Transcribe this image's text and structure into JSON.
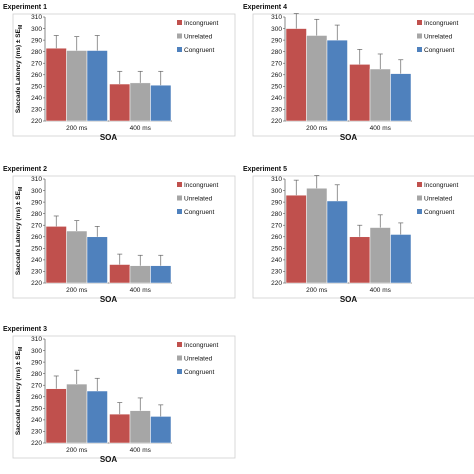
{
  "chart_data": [
    {
      "type": "bar",
      "title": "Experiment 1",
      "ylabel": "Saccade Latency (ms) ± SE",
      "ylabel_sub": "M",
      "xlabel": "SOA",
      "categories": [
        "200 ms",
        "400 ms"
      ],
      "ylim": [
        220,
        310
      ],
      "yticks": [
        220,
        230,
        240,
        250,
        260,
        270,
        280,
        290,
        300,
        310
      ],
      "legend_position": "top-right",
      "series": [
        {
          "name": "Incongruent",
          "color": "#c0504d",
          "values": [
            283,
            252
          ],
          "errors": [
            11,
            11
          ]
        },
        {
          "name": "Unrelated",
          "color": "#a6a6a6",
          "values": [
            281,
            253
          ],
          "errors": [
            12,
            10
          ]
        },
        {
          "name": "Congruent",
          "color": "#4f81bd",
          "values": [
            281,
            251
          ],
          "errors": [
            13,
            12
          ]
        }
      ]
    },
    {
      "type": "bar",
      "title": "Experiment 4",
      "ylabel": "",
      "xlabel": "SOA",
      "categories": [
        "200 ms",
        "400 ms"
      ],
      "ylim": [
        220,
        310
      ],
      "yticks": [
        220,
        230,
        240,
        250,
        260,
        270,
        280,
        290,
        300,
        310
      ],
      "legend_position": "top-right",
      "series": [
        {
          "name": "Incongruent",
          "color": "#c0504d",
          "values": [
            300,
            269
          ],
          "errors": [
            15,
            13
          ]
        },
        {
          "name": "Unrelated",
          "color": "#a6a6a6",
          "values": [
            294,
            265
          ],
          "errors": [
            14,
            13
          ]
        },
        {
          "name": "Congruent",
          "color": "#4f81bd",
          "values": [
            290,
            261
          ],
          "errors": [
            13,
            12
          ]
        }
      ]
    },
    {
      "type": "bar",
      "title": "Experiment 2",
      "ylabel": "Saccade Latency (ms) ± SE",
      "ylabel_sub": "M",
      "xlabel": "SOA",
      "categories": [
        "200 ms",
        "400 ms"
      ],
      "ylim": [
        220,
        310
      ],
      "yticks": [
        220,
        230,
        240,
        250,
        260,
        270,
        280,
        290,
        300,
        310
      ],
      "legend_position": "top-right",
      "series": [
        {
          "name": "Incongruent",
          "color": "#c0504d",
          "values": [
            269,
            236
          ],
          "errors": [
            9,
            9
          ]
        },
        {
          "name": "Unrelated",
          "color": "#a6a6a6",
          "values": [
            265,
            235
          ],
          "errors": [
            9,
            9
          ]
        },
        {
          "name": "Congruent",
          "color": "#4f81bd",
          "values": [
            260,
            235
          ],
          "errors": [
            9,
            9
          ]
        }
      ]
    },
    {
      "type": "bar",
      "title": "Experiment 5",
      "ylabel": "",
      "xlabel": "SOA",
      "categories": [
        "200 ms",
        "400 ms"
      ],
      "ylim": [
        220,
        310
      ],
      "yticks": [
        220,
        230,
        240,
        250,
        260,
        270,
        280,
        290,
        300,
        310
      ],
      "legend_position": "top-right",
      "series": [
        {
          "name": "Incongruent",
          "color": "#c0504d",
          "values": [
            296,
            260
          ],
          "errors": [
            13,
            10
          ]
        },
        {
          "name": "Unrelated",
          "color": "#a6a6a6",
          "values": [
            302,
            268
          ],
          "errors": [
            13,
            11
          ]
        },
        {
          "name": "Congruent",
          "color": "#4f81bd",
          "values": [
            291,
            262
          ],
          "errors": [
            14,
            10
          ]
        }
      ]
    },
    {
      "type": "bar",
      "title": "Experiment 3",
      "ylabel": "Saccade Latency (ms) ± SE",
      "ylabel_sub": "M",
      "xlabel": "SOA",
      "categories": [
        "200 ms",
        "400 ms"
      ],
      "ylim": [
        220,
        310
      ],
      "yticks": [
        220,
        230,
        240,
        250,
        260,
        270,
        280,
        290,
        300,
        310
      ],
      "legend_position": "top-right",
      "series": [
        {
          "name": "Incongruent",
          "color": "#c0504d",
          "values": [
            267,
            245
          ],
          "errors": [
            11,
            10
          ]
        },
        {
          "name": "Unrelated",
          "color": "#a6a6a6",
          "values": [
            271,
            248
          ],
          "errors": [
            12,
            11
          ]
        },
        {
          "name": "Congruent",
          "color": "#4f81bd",
          "values": [
            265,
            243
          ],
          "errors": [
            11,
            10
          ]
        }
      ]
    }
  ]
}
